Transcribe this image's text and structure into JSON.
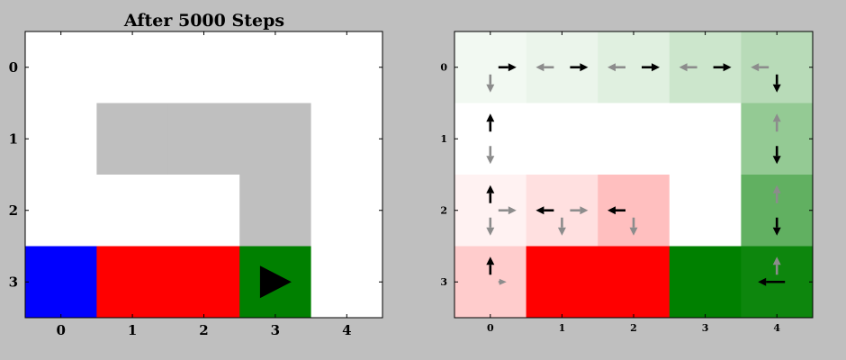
{
  "colors": {
    "figure_bg": "#bfbfbf",
    "axes_bg": "#ffffff",
    "wall": "#bfbfbf",
    "start": "#0000ff",
    "cliff": "#ff0000",
    "goal": "#008000",
    "arrow_best": "#000000",
    "arrow_other": "#8c8c8c"
  },
  "chart_data": [
    {
      "type": "heatmap",
      "title": "After 5000 Steps",
      "x_ticks": [
        "0",
        "1",
        "2",
        "3",
        "4"
      ],
      "y_ticks": [
        "0",
        "1",
        "2",
        "3"
      ],
      "xlim": [
        -0.5,
        4.5
      ],
      "ylim": [
        3.5,
        -0.5
      ],
      "cell_legend": {
        "O": "open",
        "W": "wall",
        "S": "start",
        "C": "cliff",
        "G": "goal"
      },
      "grid": [
        "OOOOO",
        "OWWWO",
        "OOOWO",
        "SCCGO"
      ],
      "agent": {
        "x": 3,
        "y": 3,
        "marker": "right-triangle"
      }
    },
    {
      "type": "heatmap",
      "title": "",
      "x_ticks": [
        "0",
        "1",
        "2",
        "3",
        "4"
      ],
      "y_ticks": [
        "0",
        "1",
        "2",
        "3"
      ],
      "xlim": [
        -0.5,
        4.5
      ],
      "ylim": [
        3.5,
        -0.5
      ],
      "value_scale": {
        "positive_color": "#008000",
        "negative_color": "#ff0000",
        "min": -1,
        "max": 1
      },
      "cell_values": [
        [
          0.05,
          0.08,
          0.12,
          0.2,
          0.28
        ],
        [
          0.0,
          0.0,
          0.0,
          0.0,
          0.42
        ],
        [
          -0.05,
          -0.12,
          -0.25,
          0.0,
          0.62
        ],
        [
          -0.2,
          -1.0,
          -1.0,
          1.0,
          0.95
        ]
      ],
      "arrows": [
        {
          "x": 0,
          "y": 0,
          "dir": "right",
          "best": true,
          "len": "long"
        },
        {
          "x": 0,
          "y": 0,
          "dir": "down",
          "best": false,
          "len": "long"
        },
        {
          "x": 1,
          "y": 0,
          "dir": "left",
          "best": false,
          "len": "long"
        },
        {
          "x": 1,
          "y": 0,
          "dir": "right",
          "best": true,
          "len": "long"
        },
        {
          "x": 2,
          "y": 0,
          "dir": "left",
          "best": false,
          "len": "long"
        },
        {
          "x": 2,
          "y": 0,
          "dir": "right",
          "best": true,
          "len": "long"
        },
        {
          "x": 3,
          "y": 0,
          "dir": "left",
          "best": false,
          "len": "long"
        },
        {
          "x": 3,
          "y": 0,
          "dir": "right",
          "best": true,
          "len": "long"
        },
        {
          "x": 4,
          "y": 0,
          "dir": "left",
          "best": false,
          "len": "long"
        },
        {
          "x": 4,
          "y": 0,
          "dir": "down",
          "best": true,
          "len": "long"
        },
        {
          "x": 0,
          "y": 1,
          "dir": "up",
          "best": true,
          "len": "long"
        },
        {
          "x": 0,
          "y": 1,
          "dir": "down",
          "best": false,
          "len": "long"
        },
        {
          "x": 4,
          "y": 1,
          "dir": "up",
          "best": false,
          "len": "long"
        },
        {
          "x": 4,
          "y": 1,
          "dir": "down",
          "best": true,
          "len": "long"
        },
        {
          "x": 0,
          "y": 2,
          "dir": "up",
          "best": true,
          "len": "long"
        },
        {
          "x": 0,
          "y": 2,
          "dir": "right",
          "best": false,
          "len": "long"
        },
        {
          "x": 0,
          "y": 2,
          "dir": "down",
          "best": false,
          "len": "long"
        },
        {
          "x": 1,
          "y": 2,
          "dir": "left",
          "best": true,
          "len": "long"
        },
        {
          "x": 1,
          "y": 2,
          "dir": "right",
          "best": false,
          "len": "long"
        },
        {
          "x": 1,
          "y": 2,
          "dir": "down",
          "best": false,
          "len": "long"
        },
        {
          "x": 2,
          "y": 2,
          "dir": "left",
          "best": true,
          "len": "long"
        },
        {
          "x": 2,
          "y": 2,
          "dir": "down",
          "best": false,
          "len": "long"
        },
        {
          "x": 4,
          "y": 2,
          "dir": "up",
          "best": false,
          "len": "long"
        },
        {
          "x": 4,
          "y": 2,
          "dir": "down",
          "best": true,
          "len": "long"
        },
        {
          "x": 0,
          "y": 3,
          "dir": "up",
          "best": true,
          "len": "long"
        },
        {
          "x": 0,
          "y": 3,
          "dir": "right",
          "best": false,
          "len": "short"
        },
        {
          "x": 4,
          "y": 3,
          "dir": "up",
          "best": false,
          "len": "long"
        },
        {
          "x": 4,
          "y": 3,
          "dir": "left",
          "best": true,
          "len": "xlong"
        }
      ]
    }
  ]
}
